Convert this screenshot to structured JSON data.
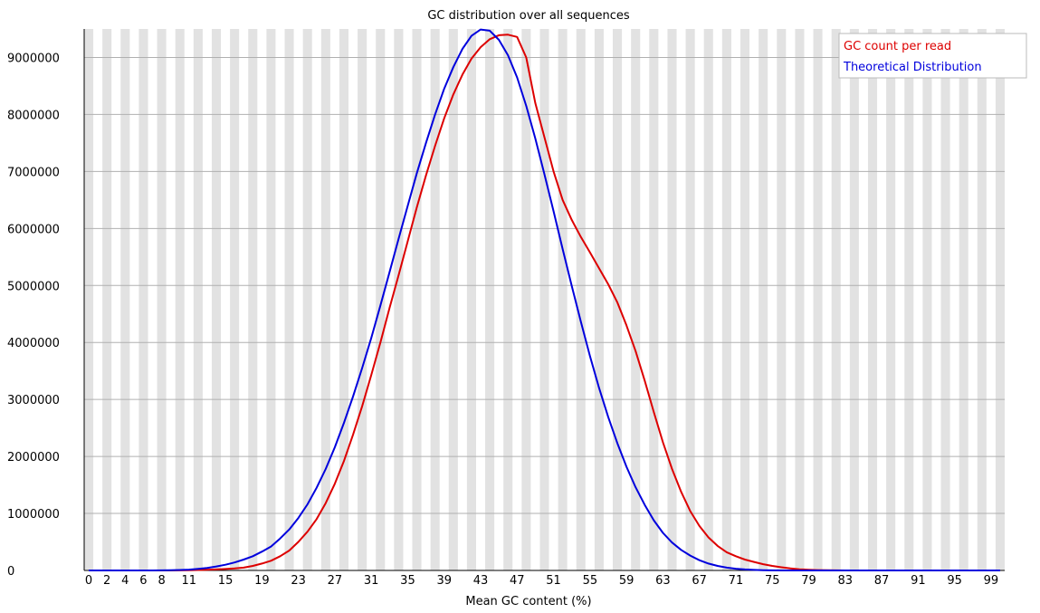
{
  "chart_data": {
    "type": "line",
    "title": "GC distribution over all sequences",
    "xlabel": "Mean GC content (%)",
    "ylabel": "",
    "xlim": [
      0,
      101
    ],
    "ylim": [
      0,
      9500000
    ],
    "grid": "horizontal",
    "legend_position": "top-right",
    "x_tick_labels": [
      "0",
      "2",
      "4",
      "6",
      "8",
      "11",
      "15",
      "19",
      "23",
      "27",
      "31",
      "35",
      "39",
      "43",
      "47",
      "51",
      "55",
      "59",
      "63",
      "67",
      "71",
      "75",
      "79",
      "83",
      "87",
      "91",
      "95",
      "99"
    ],
    "y_tick_labels": [
      "0",
      "1000000",
      "2000000",
      "3000000",
      "4000000",
      "5000000",
      "6000000",
      "7000000",
      "8000000",
      "9000000"
    ],
    "x": [
      0,
      1,
      2,
      3,
      4,
      5,
      6,
      7,
      8,
      9,
      10,
      11,
      12,
      13,
      14,
      15,
      16,
      17,
      18,
      19,
      20,
      21,
      22,
      23,
      24,
      25,
      26,
      27,
      28,
      29,
      30,
      31,
      32,
      33,
      34,
      35,
      36,
      37,
      38,
      39,
      40,
      41,
      42,
      43,
      44,
      45,
      46,
      47,
      48,
      49,
      50,
      51,
      52,
      53,
      54,
      55,
      56,
      57,
      58,
      59,
      60,
      61,
      62,
      63,
      64,
      65,
      66,
      67,
      68,
      69,
      70,
      71,
      72,
      73,
      74,
      75,
      76,
      77,
      78,
      79,
      80,
      81,
      82,
      83,
      84,
      85,
      86,
      87,
      88,
      89,
      90,
      91,
      92,
      93,
      94,
      95,
      96,
      97,
      98,
      99,
      100
    ],
    "series": [
      {
        "name": "GC count per read",
        "color": "#dd0000",
        "values": [
          0,
          0,
          0,
          0,
          0,
          0,
          0,
          0,
          0,
          0,
          2000,
          4000,
          8000,
          12000,
          18000,
          25000,
          35000,
          50000,
          80000,
          120000,
          170000,
          250000,
          350000,
          500000,
          680000,
          900000,
          1180000,
          1520000,
          1920000,
          2380000,
          2880000,
          3430000,
          4000000,
          4600000,
          5180000,
          5780000,
          6370000,
          6930000,
          7450000,
          7930000,
          8350000,
          8700000,
          8980000,
          9180000,
          9320000,
          9390000,
          9400000,
          9360000,
          9000000,
          8200000,
          7600000,
          7000000,
          6500000,
          6150000,
          5850000,
          5580000,
          5300000,
          5020000,
          4700000,
          4300000,
          3850000,
          3330000,
          2780000,
          2250000,
          1780000,
          1380000,
          1040000,
          780000,
          580000,
          430000,
          320000,
          250000,
          190000,
          150000,
          110000,
          80000,
          55000,
          35000,
          20000,
          12000,
          6000,
          3000,
          1000,
          0,
          0,
          0,
          0,
          0,
          0,
          0,
          0,
          0,
          0,
          0,
          0,
          0,
          0,
          0,
          0,
          0,
          0
        ]
      },
      {
        "name": "Theoretical Distribution",
        "color": "#0000dd",
        "values": [
          0,
          0,
          0,
          0,
          0,
          0,
          0,
          0,
          2000,
          4000,
          8000,
          15000,
          28000,
          45000,
          70000,
          100000,
          140000,
          190000,
          250000,
          330000,
          420000,
          560000,
          720000,
          920000,
          1160000,
          1450000,
          1780000,
          2160000,
          2590000,
          3050000,
          3550000,
          4080000,
          4650000,
          5230000,
          5820000,
          6400000,
          6970000,
          7500000,
          8000000,
          8450000,
          8830000,
          9150000,
          9380000,
          9490000,
          9470000,
          9310000,
          9040000,
          8650000,
          8150000,
          7580000,
          6950000,
          6300000,
          5640000,
          4990000,
          4360000,
          3760000,
          3200000,
          2690000,
          2230000,
          1820000,
          1460000,
          1150000,
          880000,
          660000,
          490000,
          360000,
          260000,
          180000,
          120000,
          80000,
          50000,
          30000,
          17000,
          9000,
          4000,
          2000,
          0,
          0,
          0,
          0,
          0,
          0,
          0,
          0,
          0,
          0,
          0,
          0,
          0,
          0,
          0,
          0,
          0,
          0,
          0,
          0,
          0,
          0,
          0,
          0,
          0
        ]
      }
    ]
  }
}
